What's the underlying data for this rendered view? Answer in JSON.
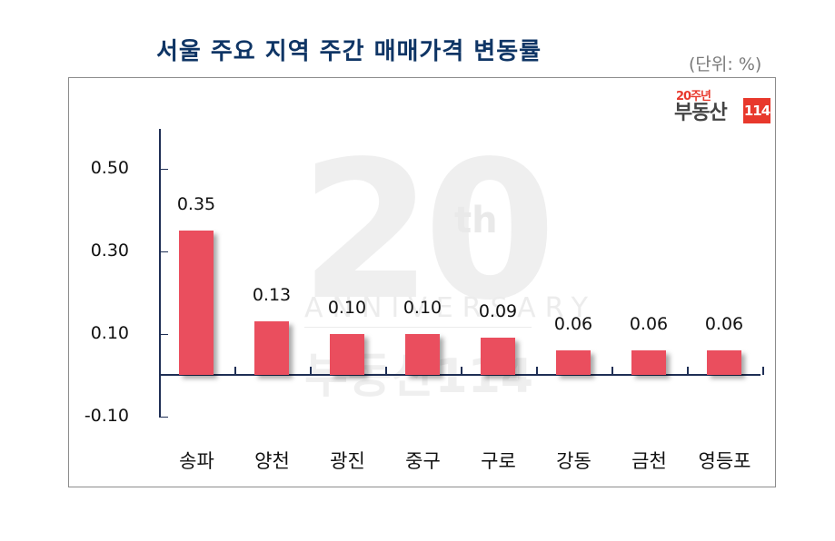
{
  "header": {
    "title": "서울 주요 지역 주간 매매가격 변동률",
    "unit": "(단위: %)"
  },
  "logo": {
    "small": "20주년",
    "brand": "부동산",
    "badge": "114"
  },
  "watermark": {
    "big": "20",
    "suffix": "th",
    "subtitle": "ANNIVERSARY",
    "brand": "부동산114"
  },
  "colors": {
    "title": "#0f3565",
    "bar": "#ea4e5e",
    "axis": "#1f2f55"
  },
  "chart_data": {
    "type": "bar",
    "title": "서울 주요 지역 주간 매매가격 변동률",
    "subtitle": "(단위: %)",
    "xlabel": "",
    "ylabel": "",
    "categories": [
      "송파",
      "양천",
      "광진",
      "중구",
      "구로",
      "강동",
      "금천",
      "영등포"
    ],
    "values": [
      0.35,
      0.13,
      0.1,
      0.1,
      0.09,
      0.06,
      0.06,
      0.06
    ],
    "value_labels": [
      "0.35",
      "0.13",
      "0.10",
      "0.10",
      "0.09",
      "0.06",
      "0.06",
      "0.06"
    ],
    "yticks": [
      "0.50",
      "0.30",
      "0.10",
      "-0.10"
    ],
    "ylim": [
      -0.1,
      0.6
    ],
    "grid": false,
    "legend": null
  }
}
